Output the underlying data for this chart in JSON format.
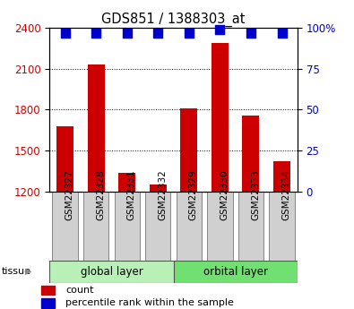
{
  "title": "GDS851 / 1388303_at",
  "samples": [
    "GSM22327",
    "GSM22328",
    "GSM22331",
    "GSM22332",
    "GSM22329",
    "GSM22330",
    "GSM22333",
    "GSM22334"
  ],
  "counts": [
    1680,
    2130,
    1340,
    1250,
    1810,
    2290,
    1760,
    1420
  ],
  "percentiles": [
    97,
    97,
    97,
    97,
    97,
    99,
    97,
    97
  ],
  "groups": [
    {
      "label": "global layer",
      "start": 0,
      "end": 4,
      "color": "#b8f0b8"
    },
    {
      "label": "orbital layer",
      "start": 4,
      "end": 8,
      "color": "#70e070"
    }
  ],
  "ylim_left": [
    1200,
    2400
  ],
  "ylim_right": [
    0,
    100
  ],
  "yticks_left": [
    1200,
    1500,
    1800,
    2100,
    2400
  ],
  "yticks_right": [
    0,
    25,
    50,
    75,
    100
  ],
  "bar_color": "#cc0000",
  "dot_color": "#0000cc",
  "bar_width": 0.55,
  "dot_size": 45,
  "tick_label_color_left": "#cc0000",
  "tick_label_color_right": "#0000cc",
  "sample_box_color": "#d0d0d0",
  "sample_box_edge": "#888888",
  "legend_items": [
    {
      "label": "count",
      "color": "#cc0000"
    },
    {
      "label": "percentile rank within the sample",
      "color": "#0000cc"
    }
  ]
}
